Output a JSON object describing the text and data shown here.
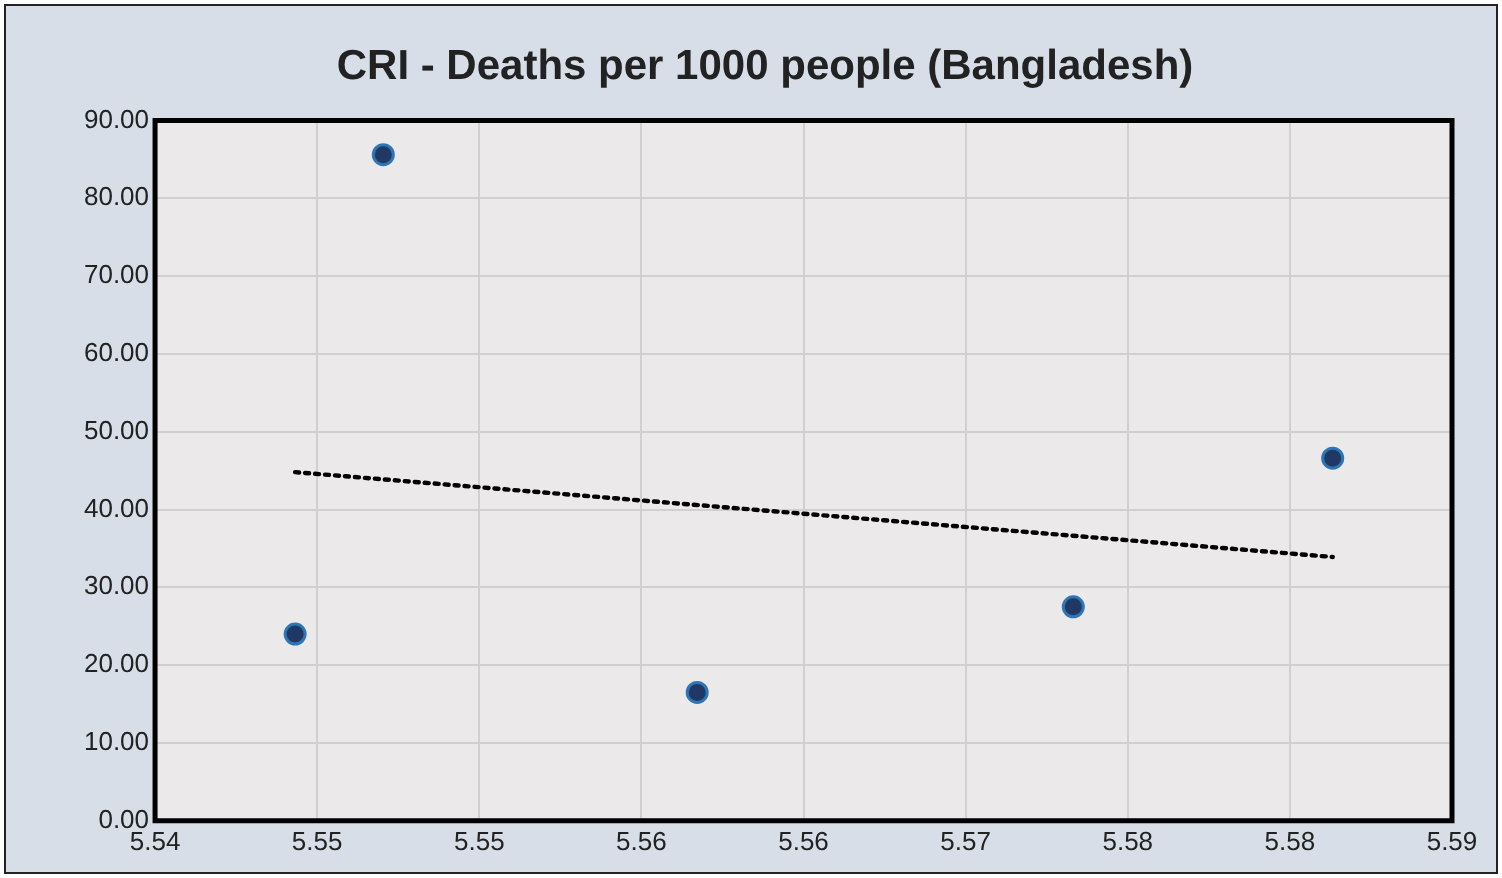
{
  "chart_data": {
    "type": "scatter",
    "title": "CRI - Deaths per 1000 people (Bangladesh)",
    "xlim": [
      5.54,
      5.59
    ],
    "xticks": [
      {
        "value": 5.54,
        "label": "5.54"
      },
      {
        "value": 5.54625,
        "label": "5.55"
      },
      {
        "value": 5.5525,
        "label": "5.55"
      },
      {
        "value": 5.55875,
        "label": "5.56"
      },
      {
        "value": 5.565,
        "label": "5.56"
      },
      {
        "value": 5.57125,
        "label": "5.57"
      },
      {
        "value": 5.5775,
        "label": "5.58"
      },
      {
        "value": 5.58375,
        "label": "5.58"
      },
      {
        "value": 5.59,
        "label": "5.59"
      }
    ],
    "ylim": [
      0,
      90
    ],
    "yticks": [
      {
        "value": 0,
        "label": "0.00"
      },
      {
        "value": 10,
        "label": "10.00"
      },
      {
        "value": 20,
        "label": "20.00"
      },
      {
        "value": 30,
        "label": "30.00"
      },
      {
        "value": 40,
        "label": "40.00"
      },
      {
        "value": 50,
        "label": "50.00"
      },
      {
        "value": 60,
        "label": "60.00"
      },
      {
        "value": 70,
        "label": "70.00"
      },
      {
        "value": 80,
        "label": "80.00"
      },
      {
        "value": 90,
        "label": "90.00"
      }
    ],
    "grid": true,
    "legend": false,
    "series": [
      {
        "color": "#1f3864",
        "marker": "circle",
        "x": [
          5.5454,
          5.5488,
          5.5609,
          5.5754,
          5.5854
        ],
        "values": [
          24,
          85.6,
          16.5,
          27.5,
          46.6
        ]
      },
      {
        "type": "line",
        "color": "#000000",
        "marker": "none",
        "line_style": "dotted",
        "x": [
          5.5454,
          5.5854
        ],
        "values": [
          44.8,
          33.9
        ]
      }
    ]
  }
}
